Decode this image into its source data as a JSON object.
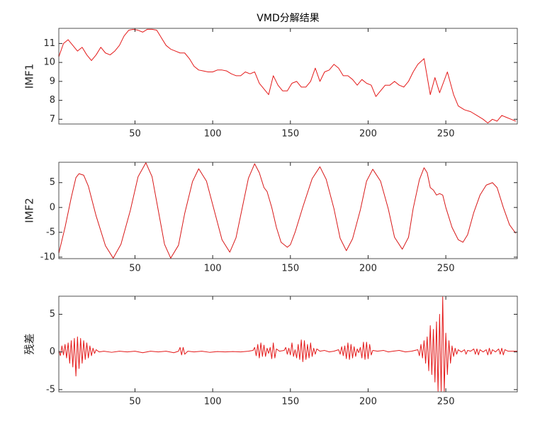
{
  "chart_data": [
    {
      "type": "line",
      "title": "VMD分解结果",
      "ylabel": "IMF1",
      "color": "#e41a1a",
      "x": [
        1,
        4,
        7,
        10,
        13,
        16,
        19,
        22,
        25,
        28,
        31,
        34,
        37,
        40,
        43,
        46,
        49,
        52,
        55,
        58,
        61,
        64,
        67,
        70,
        73,
        76,
        79,
        82,
        85,
        88,
        91,
        94,
        97,
        100,
        103,
        106,
        109,
        112,
        115,
        118,
        121,
        124,
        127,
        130,
        133,
        136,
        139,
        142,
        145,
        148,
        151,
        154,
        157,
        160,
        163,
        166,
        169,
        172,
        175,
        178,
        181,
        184,
        187,
        190,
        193,
        196,
        199,
        202,
        205,
        208,
        211,
        214,
        217,
        220,
        223,
        226,
        229,
        232,
        236,
        240,
        243,
        246,
        251,
        255,
        258,
        262,
        266,
        270,
        274,
        277,
        280,
        283,
        286,
        289,
        292,
        295
      ],
      "values": [
        10.3,
        11.0,
        11.2,
        10.9,
        10.6,
        10.8,
        10.4,
        10.1,
        10.4,
        10.8,
        10.5,
        10.4,
        10.6,
        10.9,
        11.4,
        11.7,
        11.75,
        11.7,
        11.6,
        11.75,
        11.75,
        11.7,
        11.3,
        10.9,
        10.7,
        10.6,
        10.5,
        10.5,
        10.2,
        9.8,
        9.6,
        9.55,
        9.5,
        9.5,
        9.6,
        9.6,
        9.55,
        9.4,
        9.3,
        9.3,
        9.5,
        9.4,
        9.5,
        8.9,
        8.6,
        8.3,
        9.3,
        8.8,
        8.5,
        8.5,
        8.9,
        9.0,
        8.7,
        8.7,
        9.0,
        9.7,
        9.0,
        9.5,
        9.6,
        9.9,
        9.7,
        9.3,
        9.3,
        9.1,
        8.8,
        9.1,
        8.9,
        8.8,
        8.2,
        8.5,
        8.8,
        8.8,
        9.0,
        8.8,
        8.7,
        9.0,
        9.5,
        9.9,
        10.2,
        8.3,
        9.2,
        8.4,
        9.5,
        8.3,
        7.7,
        7.5,
        7.4,
        7.2,
        7.0,
        6.8,
        7.0,
        6.9,
        7.2,
        7.1,
        7.0,
        6.9
      ],
      "xlim": [
        1,
        296
      ],
      "xticks": [
        50,
        100,
        150,
        200,
        250
      ],
      "ylim": [
        6.75,
        11.8
      ],
      "yticks": [
        7,
        8,
        9,
        10,
        11
      ]
    },
    {
      "type": "line",
      "ylabel": "IMF2",
      "color": "#d81818",
      "x": [
        1,
        5,
        9,
        12,
        14,
        17,
        20,
        25,
        31,
        36,
        41,
        47,
        52,
        57,
        61,
        65,
        69,
        73,
        78,
        82,
        87,
        91,
        96,
        101,
        106,
        111,
        115,
        119,
        123,
        127,
        130,
        133,
        135,
        138,
        141,
        144,
        148,
        150,
        153,
        158,
        164,
        169,
        173,
        178,
        182,
        186,
        190,
        195,
        199,
        203,
        208,
        213,
        217,
        222,
        226,
        229,
        233,
        236,
        238,
        240,
        242,
        244,
        246,
        248,
        250,
        254,
        258,
        261,
        264,
        268,
        272,
        276,
        280,
        283,
        287,
        291,
        295
      ],
      "values": [
        -9.2,
        -4,
        2,
        6,
        6.8,
        6.5,
        4.3,
        -1.7,
        -7.7,
        -10.2,
        -7.4,
        -0.6,
        6.2,
        9.0,
        6.2,
        -0.6,
        -7.4,
        -10.2,
        -7.6,
        -1.2,
        5.2,
        7.8,
        5.3,
        -0.6,
        -6.5,
        -9,
        -6.1,
        -0.1,
        5.9,
        8.8,
        7,
        4,
        3.2,
        0,
        -4,
        -7,
        -8,
        -7.5,
        -5,
        0.1,
        5.8,
        8.2,
        5.7,
        -0.2,
        -6.2,
        -8.7,
        -6.3,
        -0.5,
        5.3,
        7.7,
        5.3,
        -0.3,
        -6,
        -8.4,
        -6,
        -0.2,
        5.6,
        8,
        7,
        4,
        3.5,
        2.5,
        2.8,
        2.5,
        0,
        -4,
        -6.5,
        -7,
        -5.5,
        -1,
        2.5,
        4.5,
        5,
        4,
        0,
        -3.5,
        -5.2
      ],
      "xlim": [
        1,
        296
      ],
      "xticks": [
        50,
        100,
        150,
        200,
        250
      ],
      "ylim": [
        -10.3,
        9.1
      ],
      "yticks": [
        -10,
        -5,
        0,
        5
      ]
    },
    {
      "type": "line",
      "ylabel": "残差",
      "color": "#e41a1a",
      "x": [
        1,
        2,
        3,
        4,
        5,
        6,
        7,
        8,
        9,
        10,
        11,
        12,
        13,
        14,
        15,
        16,
        17,
        18,
        19,
        20,
        21,
        22,
        23,
        24,
        25,
        27,
        30,
        35,
        40,
        45,
        50,
        55,
        60,
        65,
        70,
        75,
        78,
        79,
        80,
        81,
        82,
        84,
        88,
        93,
        98,
        103,
        108,
        113,
        118,
        123,
        126,
        127,
        128,
        129,
        130,
        131,
        132,
        133,
        134,
        135,
        136,
        137,
        138,
        139,
        140,
        141,
        143,
        146,
        147,
        148,
        149,
        150,
        151,
        152,
        153,
        154,
        155,
        156,
        157,
        158,
        159,
        160,
        161,
        162,
        163,
        164,
        165,
        166,
        167,
        169,
        172,
        175,
        178,
        181,
        182,
        183,
        184,
        185,
        186,
        187,
        188,
        189,
        190,
        191,
        192,
        193,
        194,
        195,
        196,
        197,
        198,
        199,
        200,
        201,
        202,
        203,
        206,
        210,
        213,
        216,
        220,
        224,
        228,
        232,
        233,
        234,
        235,
        236,
        237,
        238,
        239,
        240,
        241,
        242,
        243,
        244,
        245,
        246,
        247,
        248,
        249,
        250,
        251,
        252,
        253,
        254,
        255,
        256,
        257,
        258,
        260,
        262,
        263,
        264,
        266,
        268,
        269,
        270,
        271,
        272,
        274,
        276,
        277,
        278,
        279,
        280,
        282,
        284,
        285,
        286,
        287,
        288,
        290,
        293,
        296
      ],
      "values": [
        0.2,
        -0.5,
        0.8,
        -0.4,
        1.0,
        -0.8,
        1.2,
        -1.5,
        1.5,
        -2.0,
        1.8,
        -3.2,
        2.0,
        -2.2,
        1.8,
        -1.5,
        1.5,
        -1.0,
        1.2,
        -0.8,
        0.8,
        -0.5,
        0.5,
        -0.2,
        0.3,
        0,
        0.1,
        -0.05,
        0.1,
        0,
        0.1,
        -0.1,
        0.1,
        0,
        0.1,
        -0.1,
        0.1,
        0.6,
        -0.4,
        0.6,
        -0.3,
        0.1,
        0,
        0.1,
        -0.05,
        0.05,
        0,
        0.05,
        0,
        0.1,
        0.2,
        0.6,
        -0.5,
        1.0,
        -0.8,
        1.2,
        -0.6,
        0.9,
        -0.6,
        0.5,
        -0.2,
        0.6,
        -0.9,
        1.2,
        -0.8,
        0.4,
        0.1,
        0.2,
        0.6,
        -0.3,
        0.5,
        -0.4,
        1.2,
        -0.6,
        0.3,
        -0.8,
        1.0,
        -1.0,
        1.6,
        -1.3,
        1.5,
        -1.0,
        1.0,
        -0.8,
        1.2,
        -0.6,
        0.5,
        -0.3,
        0.4,
        0.1,
        0.2,
        0,
        0.1,
        0.3,
        -0.3,
        0.7,
        -0.5,
        0.8,
        -0.9,
        1.2,
        -1.0,
        1.0,
        -0.8,
        0.7,
        -0.6,
        0.4,
        -0.1,
        0.6,
        -0.8,
        1.3,
        -1.0,
        1.3,
        -0.9,
        1.0,
        -0.4,
        0.2,
        0.1,
        0.2,
        0,
        0.1,
        0.2,
        0,
        0.1,
        0.3,
        -0.5,
        1.0,
        -0.8,
        1.5,
        -1.5,
        2.0,
        -2.5,
        3.5,
        -3.0,
        3.0,
        -4.0,
        4.0,
        -5.2,
        5.0,
        -5.2,
        7.3,
        -5.2,
        2.5,
        -3.0,
        1.5,
        -1.5,
        0.8,
        -0.6,
        0.5,
        -0.3,
        0.3,
        0,
        0.3,
        -0.3,
        0.2,
        0.1,
        0.4,
        -0.3,
        0.4,
        -0.4,
        0.3,
        0,
        0.3,
        -0.4,
        0.5,
        -0.3,
        0.3,
        0,
        0.4,
        -0.3,
        0.5,
        -0.4,
        0.3,
        0.1,
        0.1,
        0.1
      ],
      "xlim": [
        1,
        296
      ],
      "xticks": [
        50,
        100,
        150,
        200,
        250
      ],
      "ylim": [
        -5.3,
        7.4
      ],
      "yticks": [
        -5,
        0,
        5
      ]
    }
  ]
}
